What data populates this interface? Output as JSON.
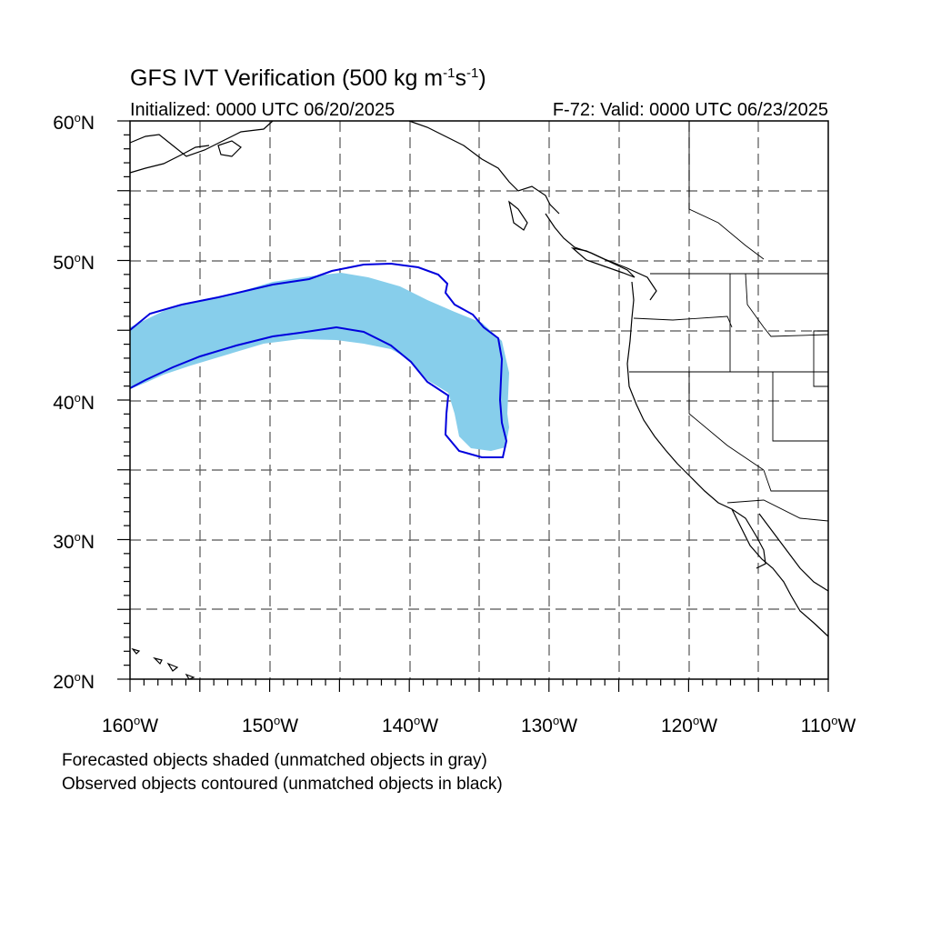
{
  "title": {
    "prefix": "GFS IVT Verification (500 kg m",
    "exp1": "-1",
    "mid": "s",
    "exp2": "-1",
    "suffix": ")"
  },
  "subtitle_left": "Initialized: 0000 UTC 06/20/2025",
  "subtitle_right": "F-72: Valid: 0000 UTC 06/23/2025",
  "notes": [
    "Forecasted objects shaded (unmatched objects in gray)",
    "Observed objects contoured (unmatched objects in black)"
  ],
  "map": {
    "lon_range": [
      -160,
      -110
    ],
    "lat_range": [
      20,
      60
    ],
    "lat_labels": [
      {
        "num": "60",
        "hem": "N"
      },
      {
        "num": "50",
        "hem": "N"
      },
      {
        "num": "40",
        "hem": "N"
      },
      {
        "num": "30",
        "hem": "N"
      },
      {
        "num": "20",
        "hem": "N"
      }
    ],
    "lon_labels": [
      {
        "num": "160",
        "hem": "W"
      },
      {
        "num": "150",
        "hem": "W"
      },
      {
        "num": "140",
        "hem": "W"
      },
      {
        "num": "130",
        "hem": "W"
      },
      {
        "num": "120",
        "hem": "W"
      },
      {
        "num": "110",
        "hem": "W"
      }
    ],
    "gridlines": "dashed every 5 degrees",
    "colors": {
      "forecast_fill": "#87CEEB",
      "observed_contour": "#0000DD",
      "coastline": "#000000",
      "grid": "#555555"
    }
  }
}
